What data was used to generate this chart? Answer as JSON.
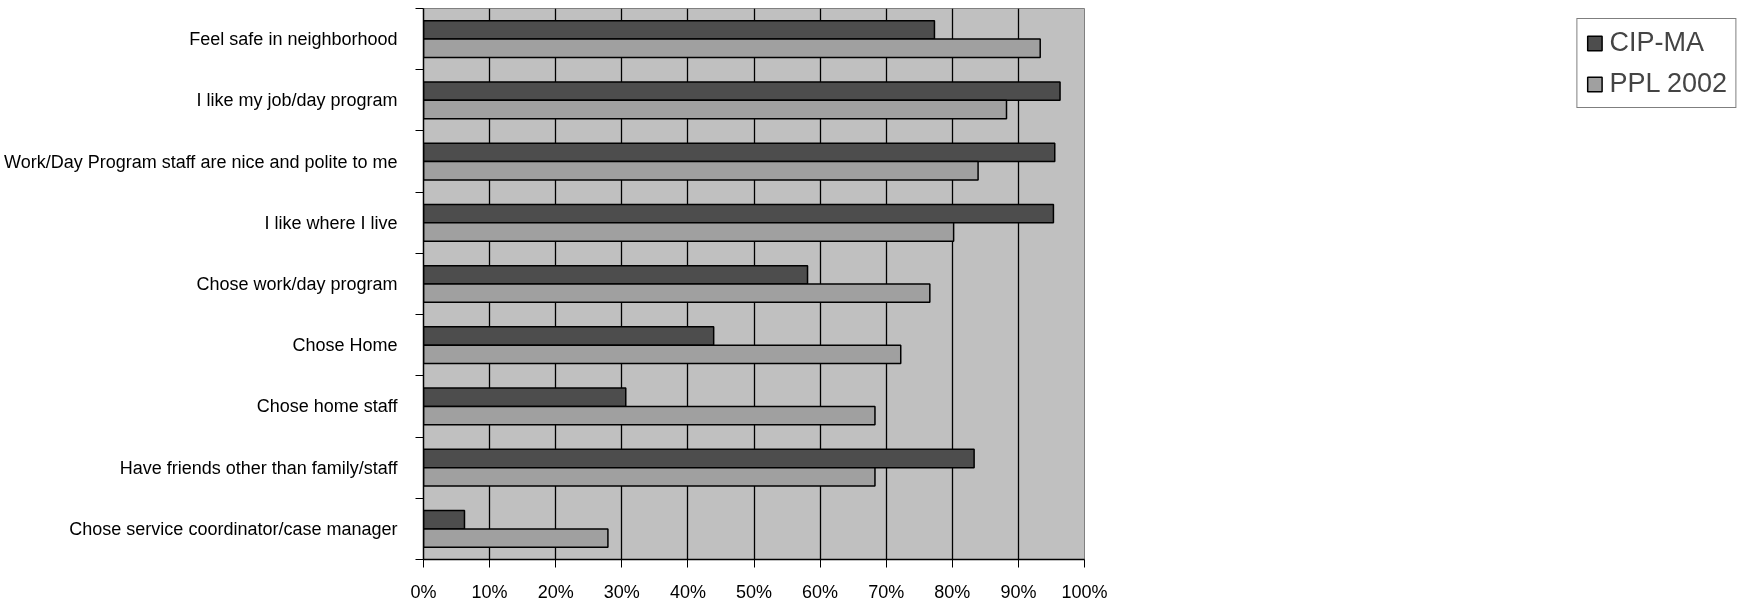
{
  "chart_data": {
    "type": "bar",
    "orientation": "horizontal",
    "categories": [
      "Feel safe in neighborhood",
      "I like my job/day program",
      "Work/Day Program staff are nice and polite to me",
      "I like where I live",
      "Chose work/day program",
      "Chose Home",
      "Chose home staff",
      "Have friends other than family/staff",
      "Chose service coordinator/case manager"
    ],
    "series": [
      {
        "name": "CIP-MA",
        "color": "#4d4d4d",
        "values": [
          77.3,
          96.3,
          95.5,
          95.3,
          58.1,
          43.9,
          30.6,
          83.3,
          6.2
        ]
      },
      {
        "name": "PPL 2002",
        "color": "#a0a0a0",
        "values": [
          93.3,
          88.2,
          83.9,
          80.2,
          76.6,
          72.2,
          68.3,
          68.3,
          27.9
        ]
      }
    ],
    "xlim": [
      0,
      100
    ],
    "xticks": [
      {
        "value": 0,
        "label": "0%"
      },
      {
        "value": 10,
        "label": "10%"
      },
      {
        "value": 20,
        "label": "20%"
      },
      {
        "value": 30,
        "label": "30%"
      },
      {
        "value": 40,
        "label": "40%"
      },
      {
        "value": 50,
        "label": "50%"
      },
      {
        "value": 60,
        "label": "60%"
      },
      {
        "value": 70,
        "label": "70%"
      },
      {
        "value": 80,
        "label": "80%"
      },
      {
        "value": 90,
        "label": "90%"
      },
      {
        "value": 100,
        "label": "100%"
      }
    ],
    "grid": "x",
    "legend": "right"
  }
}
